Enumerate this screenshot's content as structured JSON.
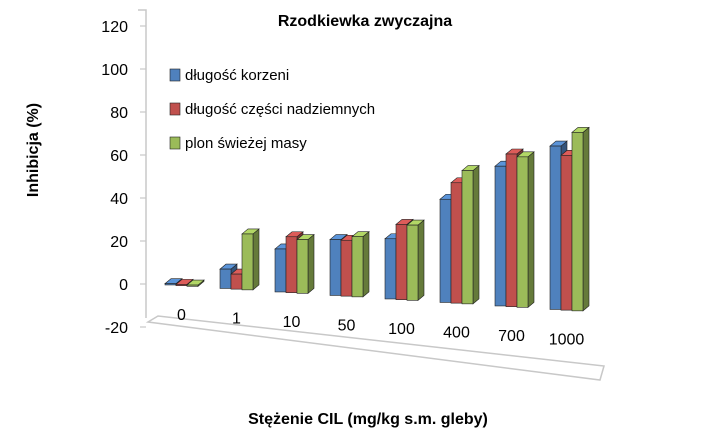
{
  "chart_data": {
    "type": "bar",
    "title": "Rzodkiewka zwyczajna",
    "xlabel": "Stężenie CIL (mg/kg s.m. gleby)",
    "ylabel": "Inhibicja (%)",
    "ylim": [
      -20,
      120
    ],
    "yticks": [
      "-20",
      "0",
      "20",
      "40",
      "60",
      "80",
      "100",
      "120"
    ],
    "categories": [
      "0",
      "1",
      "10",
      "50",
      "100",
      "400",
      "700",
      "1000"
    ],
    "legend_position": "top-left",
    "grid": false,
    "style": "3d-clustered",
    "series": [
      {
        "name": "długość korzeni",
        "color": "#4f81bd",
        "values": [
          0,
          9,
          20,
          26,
          28,
          48,
          65,
          76
        ]
      },
      {
        "name": "długość części nadziemnych",
        "color": "#c0504d",
        "values": [
          0,
          7,
          26,
          26,
          35,
          56,
          71,
          72
        ]
      },
      {
        "name": "plon świeżej masy",
        "color": "#9bbb59",
        "values": [
          0,
          26,
          25,
          28,
          35,
          62,
          70,
          83
        ]
      }
    ]
  }
}
